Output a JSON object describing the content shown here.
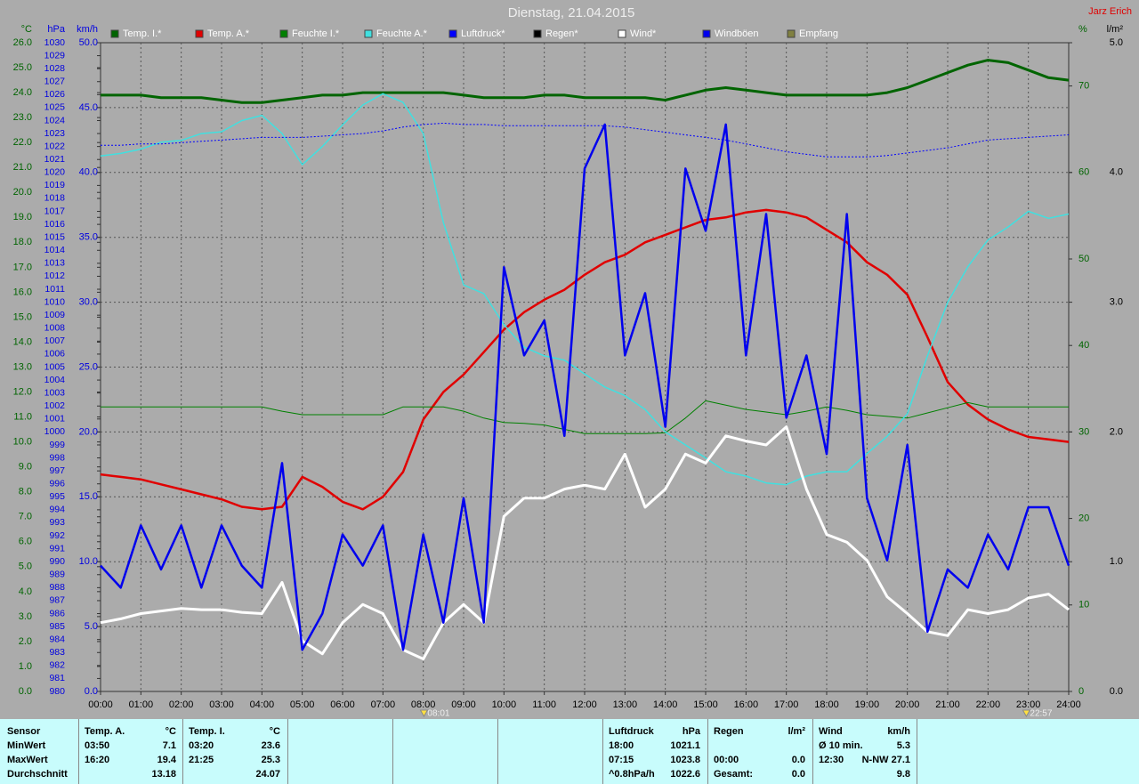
{
  "chart_data": {
    "type": "line",
    "title": "Dienstag, 21.04.2015",
    "author": "Jarz Erich",
    "xlim": [
      0,
      24
    ],
    "xticks": [
      {
        "value": 0,
        "label": "00:00"
      },
      {
        "value": 1,
        "label": "01:00"
      },
      {
        "value": 2,
        "label": "02:00"
      },
      {
        "value": 3,
        "label": "03:00"
      },
      {
        "value": 4,
        "label": "04:00"
      },
      {
        "value": 5,
        "label": "05:00"
      },
      {
        "value": 6,
        "label": "06:00"
      },
      {
        "value": 7,
        "label": "07:00"
      },
      {
        "value": 8,
        "label": "08:00"
      },
      {
        "value": 9,
        "label": "09:00"
      },
      {
        "value": 10,
        "label": "10:00"
      },
      {
        "value": 11,
        "label": "11:00"
      },
      {
        "value": 12,
        "label": "12:00"
      },
      {
        "value": 13,
        "label": "13:00"
      },
      {
        "value": 14,
        "label": "14:00"
      },
      {
        "value": 15,
        "label": "15:00"
      },
      {
        "value": 16,
        "label": "16:00"
      },
      {
        "value": 17,
        "label": "17:00"
      },
      {
        "value": 18,
        "label": "18:00"
      },
      {
        "value": 19,
        "label": "19:00"
      },
      {
        "value": 20,
        "label": "20:00"
      },
      {
        "value": 21,
        "label": "21:00"
      },
      {
        "value": 22,
        "label": "22:00"
      },
      {
        "value": 23,
        "label": "23:00"
      },
      {
        "value": 24,
        "label": "24:00"
      }
    ],
    "grid": true,
    "markers": [
      "08:01",
      "22:57"
    ],
    "axes": [
      {
        "label": "°C",
        "side": "left",
        "color": "#006400",
        "lim": [
          0,
          26
        ],
        "ticks": [
          {
            "value": 0,
            "label": "0.0"
          },
          {
            "value": 1,
            "label": "1.0"
          },
          {
            "value": 2,
            "label": "2.0"
          },
          {
            "value": 3,
            "label": "3.0"
          },
          {
            "value": 4,
            "label": "4.0"
          },
          {
            "value": 5,
            "label": "5.0"
          },
          {
            "value": 6,
            "label": "6.0"
          },
          {
            "value": 7,
            "label": "7.0"
          },
          {
            "value": 8,
            "label": "8.0"
          },
          {
            "value": 9,
            "label": "9.0"
          },
          {
            "value": 10,
            "label": "10.0"
          },
          {
            "value": 11,
            "label": "11.0"
          },
          {
            "value": 12,
            "label": "12.0"
          },
          {
            "value": 13,
            "label": "13.0"
          },
          {
            "value": 14,
            "label": "14.0"
          },
          {
            "value": 15,
            "label": "15.0"
          },
          {
            "value": 16,
            "label": "16.0"
          },
          {
            "value": 17,
            "label": "17.0"
          },
          {
            "value": 18,
            "label": "18.0"
          },
          {
            "value": 19,
            "label": "19.0"
          },
          {
            "value": 20,
            "label": "20.0"
          },
          {
            "value": 21,
            "label": "21.0"
          },
          {
            "value": 22,
            "label": "22.0"
          },
          {
            "value": 23,
            "label": "23.0"
          },
          {
            "value": 24,
            "label": "24.0"
          },
          {
            "value": 25,
            "label": "25.0"
          },
          {
            "value": 26,
            "label": "26.0"
          }
        ]
      },
      {
        "label": "hPa",
        "side": "left",
        "color": "#0000e0",
        "lim": [
          980,
          1030
        ],
        "ticks": [
          980,
          981,
          982,
          983,
          984,
          985,
          986,
          987,
          988,
          989,
          990,
          991,
          992,
          993,
          994,
          995,
          996,
          997,
          998,
          999,
          1000,
          1001,
          1002,
          1003,
          1004,
          1005,
          1006,
          1007,
          1008,
          1009,
          1010,
          1011,
          1012,
          1013,
          1014,
          1015,
          1016,
          1017,
          1018,
          1019,
          1020,
          1021,
          1022,
          1023,
          1024,
          1025,
          1026,
          1027,
          1028,
          1029,
          1030
        ]
      },
      {
        "label": "km/h",
        "side": "left",
        "color": "#0000e0",
        "lim": [
          0,
          50
        ],
        "grid": true,
        "ticks": [
          {
            "value": 0,
            "label": "0.0"
          },
          {
            "value": 5,
            "label": "5.0"
          },
          {
            "value": 10,
            "label": "10.0"
          },
          {
            "value": 15,
            "label": "15.0"
          },
          {
            "value": 20,
            "label": "20.0"
          },
          {
            "value": 25,
            "label": "25.0"
          },
          {
            "value": 30,
            "label": "30.0"
          },
          {
            "value": 35,
            "label": "35.0"
          },
          {
            "value": 40,
            "label": "40.0"
          },
          {
            "value": 45,
            "label": "45.0"
          },
          {
            "value": 50,
            "label": "50.0"
          }
        ]
      },
      {
        "label": "%",
        "side": "right",
        "color": "#006400",
        "lim": [
          0,
          75
        ],
        "ticks": [
          0,
          10,
          20,
          30,
          40,
          50,
          60,
          70
        ]
      },
      {
        "label": "l/m²",
        "side": "right",
        "color": "#000000",
        "lim": [
          0,
          5
        ],
        "ticks": [
          {
            "value": 0,
            "label": "0.0"
          },
          {
            "value": 1,
            "label": "1.0"
          },
          {
            "value": 2,
            "label": "2.0"
          },
          {
            "value": 3,
            "label": "3.0"
          },
          {
            "value": 4,
            "label": "4.0"
          },
          {
            "value": 5,
            "label": "5.0"
          }
        ]
      }
    ],
    "x": [
      0,
      0.5,
      1,
      1.5,
      2,
      2.5,
      3,
      3.5,
      4,
      4.5,
      5,
      5.5,
      6,
      6.5,
      7,
      7.5,
      8,
      8.5,
      9,
      9.5,
      10,
      10.5,
      11,
      11.5,
      12,
      12.5,
      13,
      13.5,
      14,
      14.5,
      15,
      15.5,
      16,
      16.5,
      17,
      17.5,
      18,
      18.5,
      19,
      19.5,
      20,
      20.5,
      21,
      21.5,
      22,
      22.5,
      23,
      23.5,
      24
    ],
    "series": [
      {
        "name": "Temp. I.*",
        "axis": "°C",
        "color": "#006400",
        "width": 3,
        "values": [
          23.9,
          23.9,
          23.9,
          23.8,
          23.8,
          23.8,
          23.7,
          23.6,
          23.6,
          23.7,
          23.8,
          23.9,
          23.9,
          24.0,
          24.0,
          24.0,
          24.0,
          24.0,
          23.9,
          23.8,
          23.8,
          23.8,
          23.9,
          23.9,
          23.8,
          23.8,
          23.8,
          23.8,
          23.7,
          23.9,
          24.1,
          24.2,
          24.1,
          24.0,
          23.9,
          23.9,
          23.9,
          23.9,
          23.9,
          24.0,
          24.2,
          24.5,
          24.8,
          25.1,
          25.3,
          25.2,
          24.9,
          24.6,
          24.5
        ]
      },
      {
        "name": "Temp. A.*",
        "axis": "°C",
        "color": "#e00000",
        "width": 2.5,
        "values": [
          8.7,
          8.6,
          8.5,
          8.3,
          8.1,
          7.9,
          7.7,
          7.4,
          7.3,
          7.4,
          8.6,
          8.2,
          7.6,
          7.3,
          7.8,
          8.8,
          10.9,
          12.0,
          12.7,
          13.6,
          14.5,
          15.2,
          15.7,
          16.1,
          16.7,
          17.2,
          17.5,
          18.0,
          18.3,
          18.6,
          18.9,
          19.0,
          19.2,
          19.3,
          19.2,
          19.0,
          18.5,
          18.0,
          17.2,
          16.7,
          15.9,
          14.2,
          12.4,
          11.5,
          10.9,
          10.5,
          10.2,
          10.1,
          10.0
        ]
      },
      {
        "name": "Feuchte I.*",
        "axis": "%",
        "color": "#008000",
        "width": 1,
        "values": [
          32.9,
          32.9,
          32.9,
          32.9,
          32.9,
          32.9,
          32.9,
          32.9,
          32.9,
          32.4,
          32.0,
          32.0,
          32.0,
          32.0,
          32.0,
          32.9,
          32.9,
          32.9,
          32.4,
          31.6,
          31.1,
          31.0,
          30.8,
          30.3,
          29.8,
          29.8,
          29.8,
          29.8,
          29.9,
          31.6,
          33.6,
          33.1,
          32.6,
          32.3,
          32.0,
          32.4,
          32.9,
          32.5,
          32.0,
          31.8,
          31.6,
          32.2,
          32.8,
          33.4,
          32.9,
          32.9,
          32.9,
          32.9,
          32.9
        ]
      },
      {
        "name": "Feuchte A.*",
        "axis": "%",
        "color": "#40e0e0",
        "width": 1.5,
        "values": [
          61.9,
          62.2,
          62.7,
          63.5,
          63.7,
          64.5,
          64.7,
          66.0,
          66.6,
          64.5,
          60.9,
          63.0,
          65.5,
          67.8,
          69.1,
          68.1,
          64.5,
          54.2,
          47.0,
          46.0,
          42.4,
          39.8,
          38.8,
          38.3,
          36.7,
          35.2,
          34.2,
          32.6,
          30.0,
          28.5,
          27.0,
          25.4,
          24.9,
          24.1,
          23.9,
          24.9,
          25.4,
          25.4,
          27.5,
          29.5,
          32.1,
          38.8,
          45.0,
          49.1,
          52.2,
          53.7,
          55.5,
          54.7,
          55.2
        ]
      },
      {
        "name": "Luftdruck*",
        "axis": "hPa",
        "color": "#0000ff",
        "width": 1,
        "dash": true,
        "values": [
          1022.1,
          1022.1,
          1022.2,
          1022.2,
          1022.3,
          1022.4,
          1022.5,
          1022.6,
          1022.7,
          1022.7,
          1022.7,
          1022.8,
          1022.9,
          1023.0,
          1023.2,
          1023.5,
          1023.7,
          1023.8,
          1023.7,
          1023.7,
          1023.6,
          1023.6,
          1023.6,
          1023.6,
          1023.6,
          1023.6,
          1023.5,
          1023.3,
          1023.1,
          1022.9,
          1022.7,
          1022.5,
          1022.2,
          1021.9,
          1021.6,
          1021.4,
          1021.2,
          1021.2,
          1021.2,
          1021.3,
          1021.5,
          1021.7,
          1021.9,
          1022.2,
          1022.5,
          1022.6,
          1022.7,
          1022.8,
          1022.9
        ]
      },
      {
        "name": "Regen*",
        "axis": "l/m²",
        "color": "#000000",
        "width": 1,
        "values": [
          null,
          null,
          null,
          null,
          null,
          null,
          null,
          null,
          null,
          null,
          null,
          null,
          null,
          null,
          null,
          null,
          null,
          null,
          null,
          null,
          null,
          null,
          null,
          null,
          null,
          null,
          null,
          null,
          null,
          null,
          null,
          null,
          null,
          null,
          null,
          null,
          null,
          null,
          null,
          null,
          null,
          null,
          null,
          null,
          null,
          null,
          null,
          null,
          null
        ]
      },
      {
        "name": "Wind*",
        "axis": "km/h",
        "color": "#ffffff",
        "width": 3,
        "values": [
          5.3,
          5.6,
          6.0,
          6.2,
          6.4,
          6.3,
          6.3,
          6.1,
          6.0,
          8.4,
          3.9,
          2.9,
          5.3,
          6.7,
          6.0,
          3.2,
          2.5,
          5.3,
          6.7,
          5.3,
          13.5,
          14.9,
          14.9,
          15.6,
          15.9,
          15.6,
          18.3,
          14.2,
          15.6,
          18.3,
          17.6,
          19.7,
          19.3,
          19.0,
          20.4,
          15.6,
          12.1,
          11.5,
          10.1,
          7.3,
          6.0,
          4.6,
          4.3,
          6.3,
          6.0,
          6.3,
          7.2,
          7.5,
          6.3
        ]
      },
      {
        "name": "Windböen",
        "axis": "km/h",
        "color": "#0000ee",
        "width": 2.5,
        "values": [
          9.7,
          8.0,
          12.8,
          9.4,
          12.8,
          8.0,
          12.8,
          9.7,
          8.0,
          17.6,
          3.2,
          6.0,
          12.1,
          9.7,
          12.8,
          3.2,
          12.1,
          5.3,
          14.9,
          5.3,
          32.7,
          25.9,
          28.6,
          19.7,
          40.3,
          43.7,
          25.9,
          30.7,
          20.4,
          40.3,
          35.5,
          43.7,
          25.9,
          36.8,
          21.1,
          25.9,
          18.3,
          36.8,
          14.9,
          10.1,
          19.0,
          4.6,
          9.4,
          8.0,
          12.1,
          9.4,
          14.2,
          14.2,
          9.7
        ]
      },
      {
        "name": "Empfang",
        "axis": "%",
        "color": "#808040",
        "width": 1,
        "values": [
          null,
          null,
          null,
          null,
          null,
          null,
          null,
          null,
          null,
          null,
          null,
          null,
          null,
          null,
          null,
          null,
          null,
          null,
          null,
          null,
          null,
          null,
          null,
          null,
          null,
          null,
          null,
          null,
          null,
          null,
          null,
          null,
          null,
          null,
          null,
          null,
          null,
          null,
          null,
          null,
          null,
          null,
          null,
          null,
          null,
          null,
          null,
          null,
          null
        ]
      }
    ]
  },
  "stats": {
    "labels": [
      "Sensor",
      "MinWert",
      "MaxWert",
      "Durchschnitt"
    ],
    "groups": [
      {
        "title": "Temp. A.",
        "unit": "°C",
        "rows": [
          [
            "03:50",
            "7.1"
          ],
          [
            "16:20",
            "19.4"
          ],
          [
            null,
            "13.18"
          ]
        ]
      },
      {
        "title": "Temp. I.",
        "unit": "°C",
        "rows": [
          [
            "03:20",
            "23.6"
          ],
          [
            "21:25",
            "25.3"
          ],
          [
            null,
            "24.07"
          ]
        ]
      },
      {
        "title": "Luftdruck",
        "unit": "hPa",
        "rows": [
          [
            "18:00",
            "1021.1"
          ],
          [
            "07:15",
            "1023.8"
          ],
          [
            "^0.8hPa/h",
            "1022.6"
          ]
        ]
      },
      {
        "title": "Regen",
        "unit": "l/m²",
        "rows": [
          [
            null,
            null
          ],
          [
            "00:00",
            "0.0"
          ],
          [
            "Gesamt:",
            "0.0"
          ]
        ]
      },
      {
        "title": "Wind",
        "unit": "km/h",
        "rows": [
          [
            "Ø 10 min.",
            "5.3"
          ],
          [
            "12:30",
            "N-NW 27.1"
          ],
          [
            null,
            "9.8"
          ]
        ]
      }
    ]
  }
}
